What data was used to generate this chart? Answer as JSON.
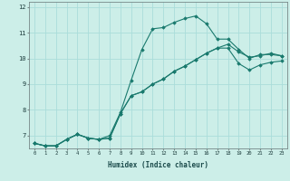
{
  "xlabel": "Humidex (Indice chaleur)",
  "ylabel": "",
  "x_ticks": [
    0,
    1,
    2,
    3,
    4,
    5,
    6,
    7,
    8,
    9,
    10,
    11,
    12,
    13,
    14,
    15,
    16,
    17,
    18,
    19,
    20,
    21,
    22,
    23
  ],
  "ylim": [
    6.5,
    12.2
  ],
  "xlim": [
    -0.5,
    23.5
  ],
  "background_color": "#cceee8",
  "grid_color": "#aaddda",
  "line_color": "#1a7a6e",
  "series": [
    {
      "x": [
        0,
        1,
        2,
        3,
        4,
        5,
        6,
        7,
        8,
        9,
        10,
        11,
        12,
        13,
        14,
        15,
        16,
        17,
        18,
        19,
        20,
        21,
        22,
        23
      ],
      "y": [
        6.7,
        6.6,
        6.6,
        6.85,
        7.05,
        6.9,
        6.85,
        7.0,
        7.9,
        9.15,
        10.35,
        11.15,
        11.2,
        11.4,
        11.55,
        11.65,
        11.35,
        10.75,
        10.75,
        10.35,
        10.0,
        10.15,
        10.15,
        10.1
      ]
    },
    {
      "x": [
        0,
        1,
        2,
        3,
        4,
        5,
        6,
        7,
        8,
        9,
        10,
        11,
        12,
        13,
        14,
        15,
        16,
        17,
        18,
        19,
        20,
        21,
        22,
        23
      ],
      "y": [
        6.7,
        6.6,
        6.6,
        6.85,
        7.05,
        6.9,
        6.85,
        6.9,
        7.85,
        8.55,
        8.7,
        9.0,
        9.2,
        9.5,
        9.7,
        9.95,
        10.2,
        10.4,
        10.4,
        9.8,
        9.55,
        9.75,
        9.85,
        9.9
      ]
    },
    {
      "x": [
        0,
        1,
        2,
        3,
        4,
        5,
        6,
        7,
        8,
        9,
        10,
        11,
        12,
        13,
        14,
        15,
        16,
        17,
        18,
        19,
        20,
        21,
        22,
        23
      ],
      "y": [
        6.7,
        6.6,
        6.6,
        6.85,
        7.05,
        6.9,
        6.85,
        6.9,
        7.85,
        8.55,
        8.7,
        9.0,
        9.2,
        9.5,
        9.7,
        9.95,
        10.2,
        10.4,
        10.55,
        10.25,
        10.05,
        10.1,
        10.2,
        10.1
      ]
    }
  ]
}
